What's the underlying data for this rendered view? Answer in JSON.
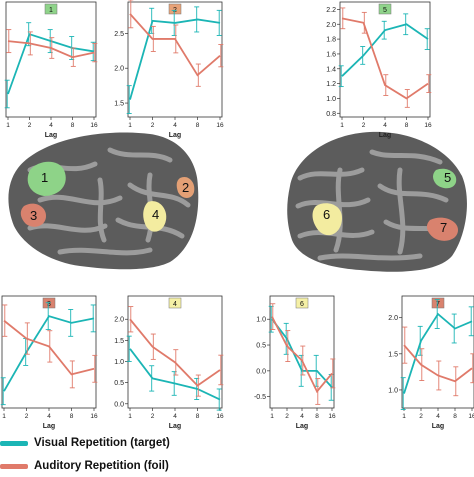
{
  "colors": {
    "visual": "#1bb5b5",
    "auditory": "#e07a6a",
    "badge_green": "#8fd48a",
    "badge_orange": "#e8a277",
    "badge_red": "#d9826e",
    "badge_yellow": "#f5f0a6",
    "cortex_dark": "#5a5a5a",
    "cortex_light": "#9a9a9a"
  },
  "legend": {
    "visual_label": "Visual Repetition (target)",
    "auditory_label": "Auditory Repetition (foil)"
  },
  "brain": {
    "left_regions": [
      "1",
      "2",
      "3",
      "4"
    ],
    "right_regions": [
      "5",
      "6",
      "7"
    ]
  },
  "chart_data": [
    {
      "type": "line",
      "panel": "1",
      "badge_color": "green",
      "x": [
        1,
        2,
        4,
        8,
        16
      ],
      "xticks": [
        "1",
        "2",
        "4",
        "8",
        "16"
      ],
      "ytick_labels": [],
      "xlabel": "Lag",
      "ylabel": "",
      "ylim": [
        0,
        1
      ],
      "series": [
        {
          "values": [
            0.2,
            0.72,
            0.66,
            0.6,
            0.57
          ],
          "errors": [
            0.12,
            0.1,
            0.1,
            0.1,
            0.08
          ]
        },
        {
          "values": [
            0.66,
            0.64,
            0.6,
            0.52,
            0.56
          ],
          "errors": [
            0.1,
            0.1,
            0.09,
            0.08,
            0.08
          ]
        }
      ]
    },
    {
      "type": "line",
      "panel": "2",
      "badge_color": "orange",
      "x": [
        1,
        2,
        4,
        8,
        16
      ],
      "xticks": [
        "1",
        "2",
        "4",
        "8",
        "16"
      ],
      "ytick_labels": [
        "1.5",
        "2.0",
        "2.5"
      ],
      "yticks": [
        1.5,
        2.0,
        2.5
      ],
      "xlabel": "Lag",
      "ylabel": "",
      "ylim": [
        1.3,
        2.95
      ],
      "series": [
        {
          "values": [
            1.55,
            2.68,
            2.65,
            2.7,
            2.65
          ],
          "errors": [
            0.2,
            0.18,
            0.18,
            0.18,
            0.18
          ]
        },
        {
          "values": [
            2.78,
            2.42,
            2.42,
            1.9,
            2.18
          ],
          "errors": [
            0.2,
            0.18,
            0.2,
            0.16,
            0.16
          ]
        }
      ]
    },
    {
      "type": "line",
      "panel": "5",
      "badge_color": "green",
      "x": [
        1,
        2,
        4,
        8,
        16
      ],
      "xticks": [
        "1",
        "2",
        "4",
        "8",
        "16"
      ],
      "ytick_labels": [
        "0.8",
        "1.0",
        "1.2",
        "1.4",
        "1.6",
        "1.8",
        "2.0",
        "2.2"
      ],
      "yticks": [
        0.8,
        1.0,
        1.2,
        1.4,
        1.6,
        1.8,
        2.0,
        2.2
      ],
      "xlabel": "Lag",
      "ylabel": "",
      "ylim": [
        0.75,
        2.3
      ],
      "series": [
        {
          "values": [
            1.3,
            1.58,
            1.92,
            2.0,
            1.8
          ],
          "errors": [
            0.14,
            0.12,
            0.12,
            0.14,
            0.14
          ]
        },
        {
          "values": [
            2.08,
            2.02,
            1.18,
            1.0,
            1.2
          ],
          "errors": [
            0.14,
            0.14,
            0.14,
            0.12,
            0.12
          ]
        }
      ]
    },
    {
      "type": "line",
      "panel": "3",
      "badge_color": "red",
      "x": [
        1,
        2,
        4,
        8,
        16
      ],
      "xticks": [
        "1",
        "2",
        "4",
        "8",
        "16"
      ],
      "ytick_labels": [],
      "xlabel": "Lag",
      "ylabel": "",
      "ylim": [
        0,
        1
      ],
      "series": [
        {
          "values": [
            0.15,
            0.5,
            0.82,
            0.76,
            0.8
          ],
          "errors": [
            0.12,
            0.12,
            0.12,
            0.12,
            0.12
          ]
        },
        {
          "values": [
            0.78,
            0.62,
            0.55,
            0.3,
            0.35
          ],
          "errors": [
            0.14,
            0.14,
            0.14,
            0.12,
            0.12
          ]
        }
      ]
    },
    {
      "type": "line",
      "panel": "4",
      "badge_color": "yellow",
      "x": [
        1,
        2,
        4,
        8,
        16
      ],
      "xticks": [
        "1",
        "2",
        "4",
        "8",
        "16"
      ],
      "ytick_labels": [
        "0.0",
        "0.5",
        "1.0",
        "1.5",
        "2.0"
      ],
      "yticks": [
        0.0,
        0.5,
        1.0,
        1.5,
        2.0
      ],
      "xlabel": "Lag",
      "ylabel": "",
      "ylim": [
        -0.1,
        2.55
      ],
      "series": [
        {
          "values": [
            1.3,
            0.6,
            0.48,
            0.35,
            0.1
          ],
          "errors": [
            0.3,
            0.3,
            0.28,
            0.25,
            0.25
          ]
        },
        {
          "values": [
            2.0,
            1.35,
            0.98,
            0.43,
            0.8
          ],
          "errors": [
            0.3,
            0.3,
            0.3,
            0.25,
            0.35
          ]
        }
      ]
    },
    {
      "type": "line",
      "panel": "6",
      "badge_color": "yellow",
      "x": [
        1,
        2,
        4,
        8,
        16
      ],
      "xticks": [
        "1",
        "2",
        "4",
        "8",
        "16"
      ],
      "ytick_labels": [
        "-0.5",
        "0.0",
        "0.5",
        "1.0"
      ],
      "yticks": [
        -0.5,
        0.0,
        0.5,
        1.0
      ],
      "xlabel": "Lag",
      "ylabel": "",
      "ylim": [
        -0.72,
        1.45
      ],
      "series": [
        {
          "values": [
            1.0,
            0.62,
            0.0,
            0.0,
            -0.32
          ],
          "errors": [
            0.25,
            0.3,
            0.3,
            0.3,
            0.25
          ]
        },
        {
          "values": [
            1.05,
            0.48,
            0.2,
            -0.4,
            -0.05
          ],
          "errors": [
            0.25,
            0.3,
            0.28,
            0.25,
            0.28
          ]
        }
      ]
    },
    {
      "type": "line",
      "panel": "7",
      "badge_color": "red",
      "x": [
        1,
        2,
        4,
        8,
        16
      ],
      "xticks": [
        "1",
        "2",
        "4",
        "8",
        "16"
      ],
      "ytick_labels": [
        "1.0",
        "1.5",
        "2.0"
      ],
      "yticks": [
        1.0,
        1.5,
        2.0
      ],
      "xlabel": "Lag",
      "ylabel": "",
      "ylim": [
        0.75,
        2.3
      ],
      "series": [
        {
          "values": [
            0.95,
            1.68,
            2.05,
            1.85,
            1.95
          ],
          "errors": [
            0.22,
            0.2,
            0.2,
            0.2,
            0.2
          ]
        },
        {
          "values": [
            1.62,
            1.35,
            1.2,
            1.12,
            1.3
          ],
          "errors": [
            0.25,
            0.22,
            0.2,
            0.2,
            0.2
          ]
        }
      ]
    }
  ]
}
